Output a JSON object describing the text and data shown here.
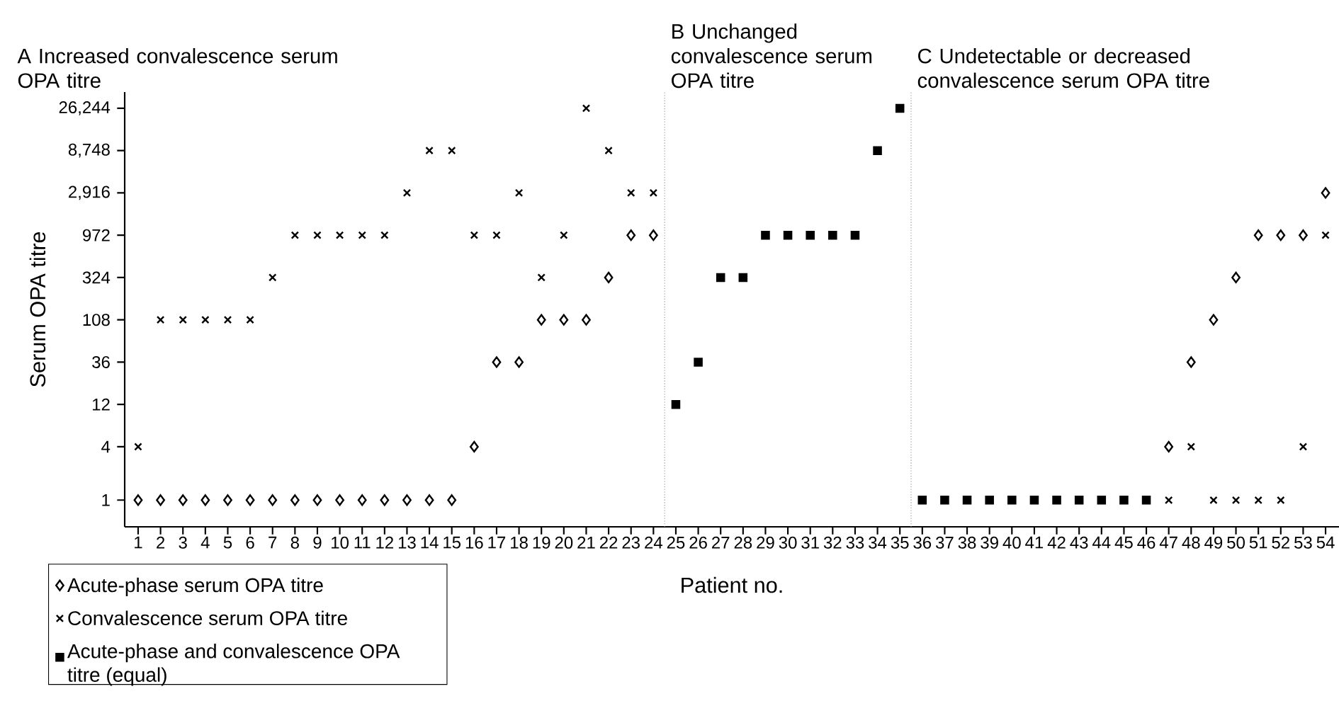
{
  "chart_data": {
    "type": "scatter",
    "xlabel": "Patient no.",
    "ylabel": "Serum OPA titre",
    "annotations": [
      "A Increased convalescence serum OPA titre",
      "B Unchanged convalescence serum OPA titre",
      "C Undetectable or decreased convalescence serum OPA titre"
    ],
    "log": "y",
    "xlim": [
      0.4,
      54.6
    ],
    "ylim": [
      0.5,
      40000
    ],
    "xticks": [
      1,
      2,
      3,
      4,
      5,
      6,
      7,
      8,
      9,
      10,
      11,
      12,
      13,
      14,
      15,
      16,
      17,
      18,
      19,
      20,
      21,
      22,
      23,
      24,
      25,
      26,
      27,
      28,
      29,
      30,
      31,
      32,
      33,
      34,
      35,
      36,
      37,
      38,
      39,
      40,
      41,
      42,
      43,
      44,
      45,
      46,
      47,
      48,
      49,
      50,
      51,
      52,
      53,
      54
    ],
    "yticks": [
      1,
      4,
      12,
      36,
      108,
      324,
      972,
      {
        "value": 2916,
        "label": "2,916"
      },
      {
        "value": 8748,
        "label": "8,748"
      },
      {
        "value": 26244,
        "label": "26,244"
      }
    ],
    "grid": false,
    "legend": "bottom left",
    "ref_lines": [
      {
        "axis": "x",
        "value": 24.5,
        "color": "#808080",
        "line_style": "dotted"
      },
      {
        "axis": "x",
        "value": 35.5,
        "color": "#808080",
        "line_style": "dotted"
      }
    ],
    "series": [
      {
        "name": "Acute-phase serum OPA titre",
        "color": "#000000",
        "marker": "diamond",
        "x": [
          1,
          2,
          3,
          4,
          5,
          6,
          7,
          8,
          9,
          10,
          11,
          12,
          13,
          14,
          15,
          16,
          17,
          18,
          19,
          20,
          21,
          22,
          23,
          24,
          47,
          48,
          49,
          50,
          51,
          52,
          53,
          54
        ],
        "values": [
          1,
          1,
          1,
          1,
          1,
          1,
          1,
          1,
          1,
          1,
          1,
          1,
          1,
          1,
          1,
          4,
          36,
          36,
          108,
          108,
          108,
          324,
          972,
          972,
          4,
          36,
          108,
          324,
          972,
          972,
          972,
          2916
        ]
      },
      {
        "name": "Convalescence serum OPA titre",
        "color": "#000000",
        "marker": "cross",
        "x": [
          1,
          2,
          3,
          4,
          5,
          6,
          7,
          8,
          9,
          10,
          11,
          12,
          13,
          14,
          15,
          16,
          17,
          18,
          19,
          20,
          21,
          22,
          23,
          24,
          47,
          48,
          49,
          50,
          51,
          52,
          53,
          54
        ],
        "values": [
          4,
          108,
          108,
          108,
          108,
          108,
          324,
          972,
          972,
          972,
          972,
          972,
          2916,
          8748,
          8748,
          972,
          972,
          2916,
          324,
          972,
          26244,
          8748,
          2916,
          2916,
          1,
          4,
          1,
          1,
          1,
          1,
          4,
          972
        ]
      },
      {
        "name": "Acute-phase and convalescence OPA titre (equal)",
        "color": "#000000",
        "marker": "square",
        "x": [
          25,
          26,
          27,
          28,
          29,
          30,
          31,
          32,
          33,
          34,
          35,
          36,
          37,
          38,
          39,
          40,
          41,
          42,
          43,
          44,
          45,
          46
        ],
        "values": [
          12,
          36,
          324,
          324,
          972,
          972,
          972,
          972,
          972,
          8748,
          26244,
          1,
          1,
          1,
          1,
          1,
          1,
          1,
          1,
          1,
          1,
          1
        ]
      }
    ]
  }
}
